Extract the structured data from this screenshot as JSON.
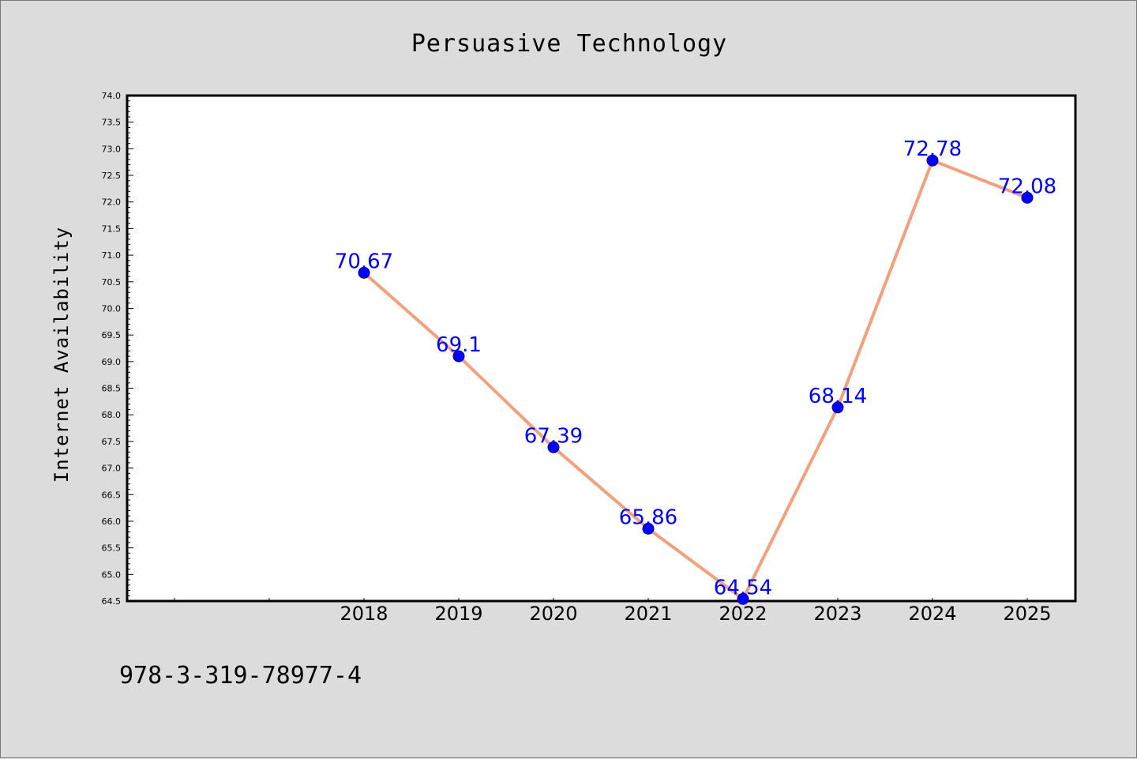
{
  "chart_data": {
    "type": "line",
    "title": "Persuasive Technology",
    "xlabel": "",
    "ylabel": "Internet Availability",
    "x": [
      "2018",
      "2019",
      "2020",
      "2021",
      "2022",
      "2023",
      "2024",
      "2025"
    ],
    "series": [
      {
        "values": [
          70.67,
          69.1,
          67.39,
          65.86,
          64.54,
          68.14,
          72.78,
          72.08
        ],
        "data_labels": [
          "70.67",
          "69.1",
          "67.39",
          "65.86",
          "64.54",
          "68.14",
          "72.78",
          "72.08"
        ]
      }
    ],
    "ylim": [
      64.5,
      74.0
    ],
    "yticks": [
      "64.5",
      "65.0",
      "65.5",
      "66.0",
      "66.5",
      "67.0",
      "67.5",
      "68.0",
      "68.5",
      "69.0",
      "69.5",
      "70.0",
      "70.5",
      "71.0",
      "71.5",
      "72.0",
      "72.5",
      "73.0",
      "73.5",
      "74.0"
    ],
    "grid": false,
    "legend": "none",
    "colors": {
      "line": "#f4a07c",
      "marker": "#0000ff",
      "data_label": "#0000ff",
      "background": "#dcdcdc",
      "plot_area": "#ffffff"
    }
  },
  "footer": {
    "text": "978-3-319-78977-4"
  }
}
